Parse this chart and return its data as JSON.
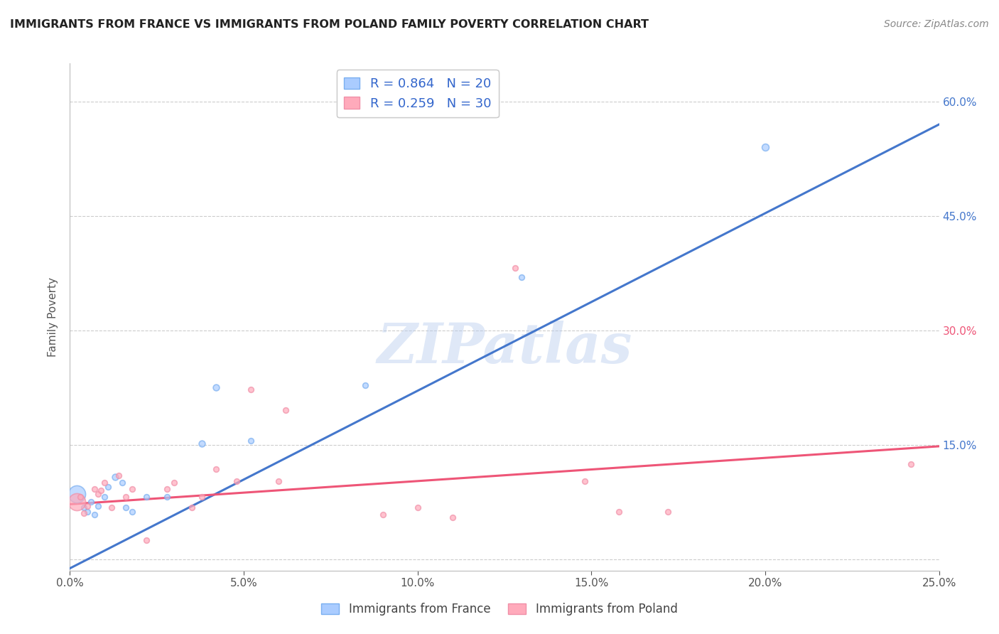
{
  "title": "IMMIGRANTS FROM FRANCE VS IMMIGRANTS FROM POLAND FAMILY POVERTY CORRELATION CHART",
  "source": "Source: ZipAtlas.com",
  "ylabel": "Family Poverty",
  "x_min": 0.0,
  "x_max": 0.25,
  "y_min": -0.015,
  "y_max": 0.65,
  "x_ticks": [
    0.0,
    0.05,
    0.1,
    0.15,
    0.2,
    0.25
  ],
  "x_tick_labels": [
    "0.0%",
    "5.0%",
    "10.0%",
    "15.0%",
    "20.0%",
    "25.0%"
  ],
  "y_tick_positions": [
    0.0,
    0.15,
    0.3,
    0.45,
    0.6
  ],
  "y_tick_labels_right": [
    "",
    "15.0%",
    "30.0%",
    "45.0%",
    "60.0%"
  ],
  "y_tick_colors_right": [
    "#444444",
    "#3366cc",
    "#3366cc",
    "#3366cc",
    "#3366cc"
  ],
  "grid_color": "#cccccc",
  "watermark": "ZIPatlas",
  "france_color": "#7aaff0",
  "france_fill": "#aaccff",
  "poland_color": "#f090a8",
  "poland_fill": "#ffaabb",
  "france_line_color": "#4477cc",
  "poland_line_color": "#ee5577",
  "france_R": "0.864",
  "france_N": "20",
  "poland_R": "0.259",
  "poland_N": "30",
  "france_points": [
    [
      0.002,
      0.085,
      22
    ],
    [
      0.004,
      0.068,
      7
    ],
    [
      0.005,
      0.062,
      7
    ],
    [
      0.006,
      0.075,
      7
    ],
    [
      0.007,
      0.058,
      7
    ],
    [
      0.008,
      0.07,
      7
    ],
    [
      0.01,
      0.082,
      7
    ],
    [
      0.011,
      0.095,
      7
    ],
    [
      0.013,
      0.108,
      8
    ],
    [
      0.015,
      0.1,
      7
    ],
    [
      0.016,
      0.068,
      7
    ],
    [
      0.018,
      0.062,
      7
    ],
    [
      0.022,
      0.082,
      7
    ],
    [
      0.028,
      0.082,
      7
    ],
    [
      0.038,
      0.152,
      8
    ],
    [
      0.042,
      0.225,
      8
    ],
    [
      0.052,
      0.155,
      7
    ],
    [
      0.085,
      0.228,
      7
    ],
    [
      0.13,
      0.37,
      7
    ],
    [
      0.2,
      0.54,
      9
    ]
  ],
  "poland_points": [
    [
      0.002,
      0.075,
      22
    ],
    [
      0.003,
      0.082,
      7
    ],
    [
      0.004,
      0.06,
      7
    ],
    [
      0.005,
      0.07,
      7
    ],
    [
      0.007,
      0.092,
      7
    ],
    [
      0.008,
      0.085,
      7
    ],
    [
      0.009,
      0.09,
      7
    ],
    [
      0.01,
      0.1,
      7
    ],
    [
      0.012,
      0.068,
      7
    ],
    [
      0.014,
      0.11,
      7
    ],
    [
      0.016,
      0.082,
      7
    ],
    [
      0.018,
      0.092,
      7
    ],
    [
      0.022,
      0.025,
      7
    ],
    [
      0.028,
      0.092,
      7
    ],
    [
      0.03,
      0.1,
      7
    ],
    [
      0.035,
      0.068,
      7
    ],
    [
      0.038,
      0.082,
      7
    ],
    [
      0.042,
      0.118,
      7
    ],
    [
      0.048,
      0.102,
      7
    ],
    [
      0.052,
      0.222,
      7
    ],
    [
      0.06,
      0.102,
      7
    ],
    [
      0.062,
      0.195,
      7
    ],
    [
      0.09,
      0.058,
      7
    ],
    [
      0.1,
      0.068,
      7
    ],
    [
      0.11,
      0.055,
      7
    ],
    [
      0.128,
      0.382,
      7
    ],
    [
      0.148,
      0.102,
      7
    ],
    [
      0.158,
      0.062,
      7
    ],
    [
      0.172,
      0.062,
      7
    ],
    [
      0.242,
      0.125,
      7
    ]
  ],
  "france_trendline_x": [
    0.0,
    0.25
  ],
  "france_trendline_y": [
    -0.012,
    0.57
  ],
  "poland_trendline_x": [
    0.0,
    0.25
  ],
  "poland_trendline_y": [
    0.072,
    0.148
  ]
}
